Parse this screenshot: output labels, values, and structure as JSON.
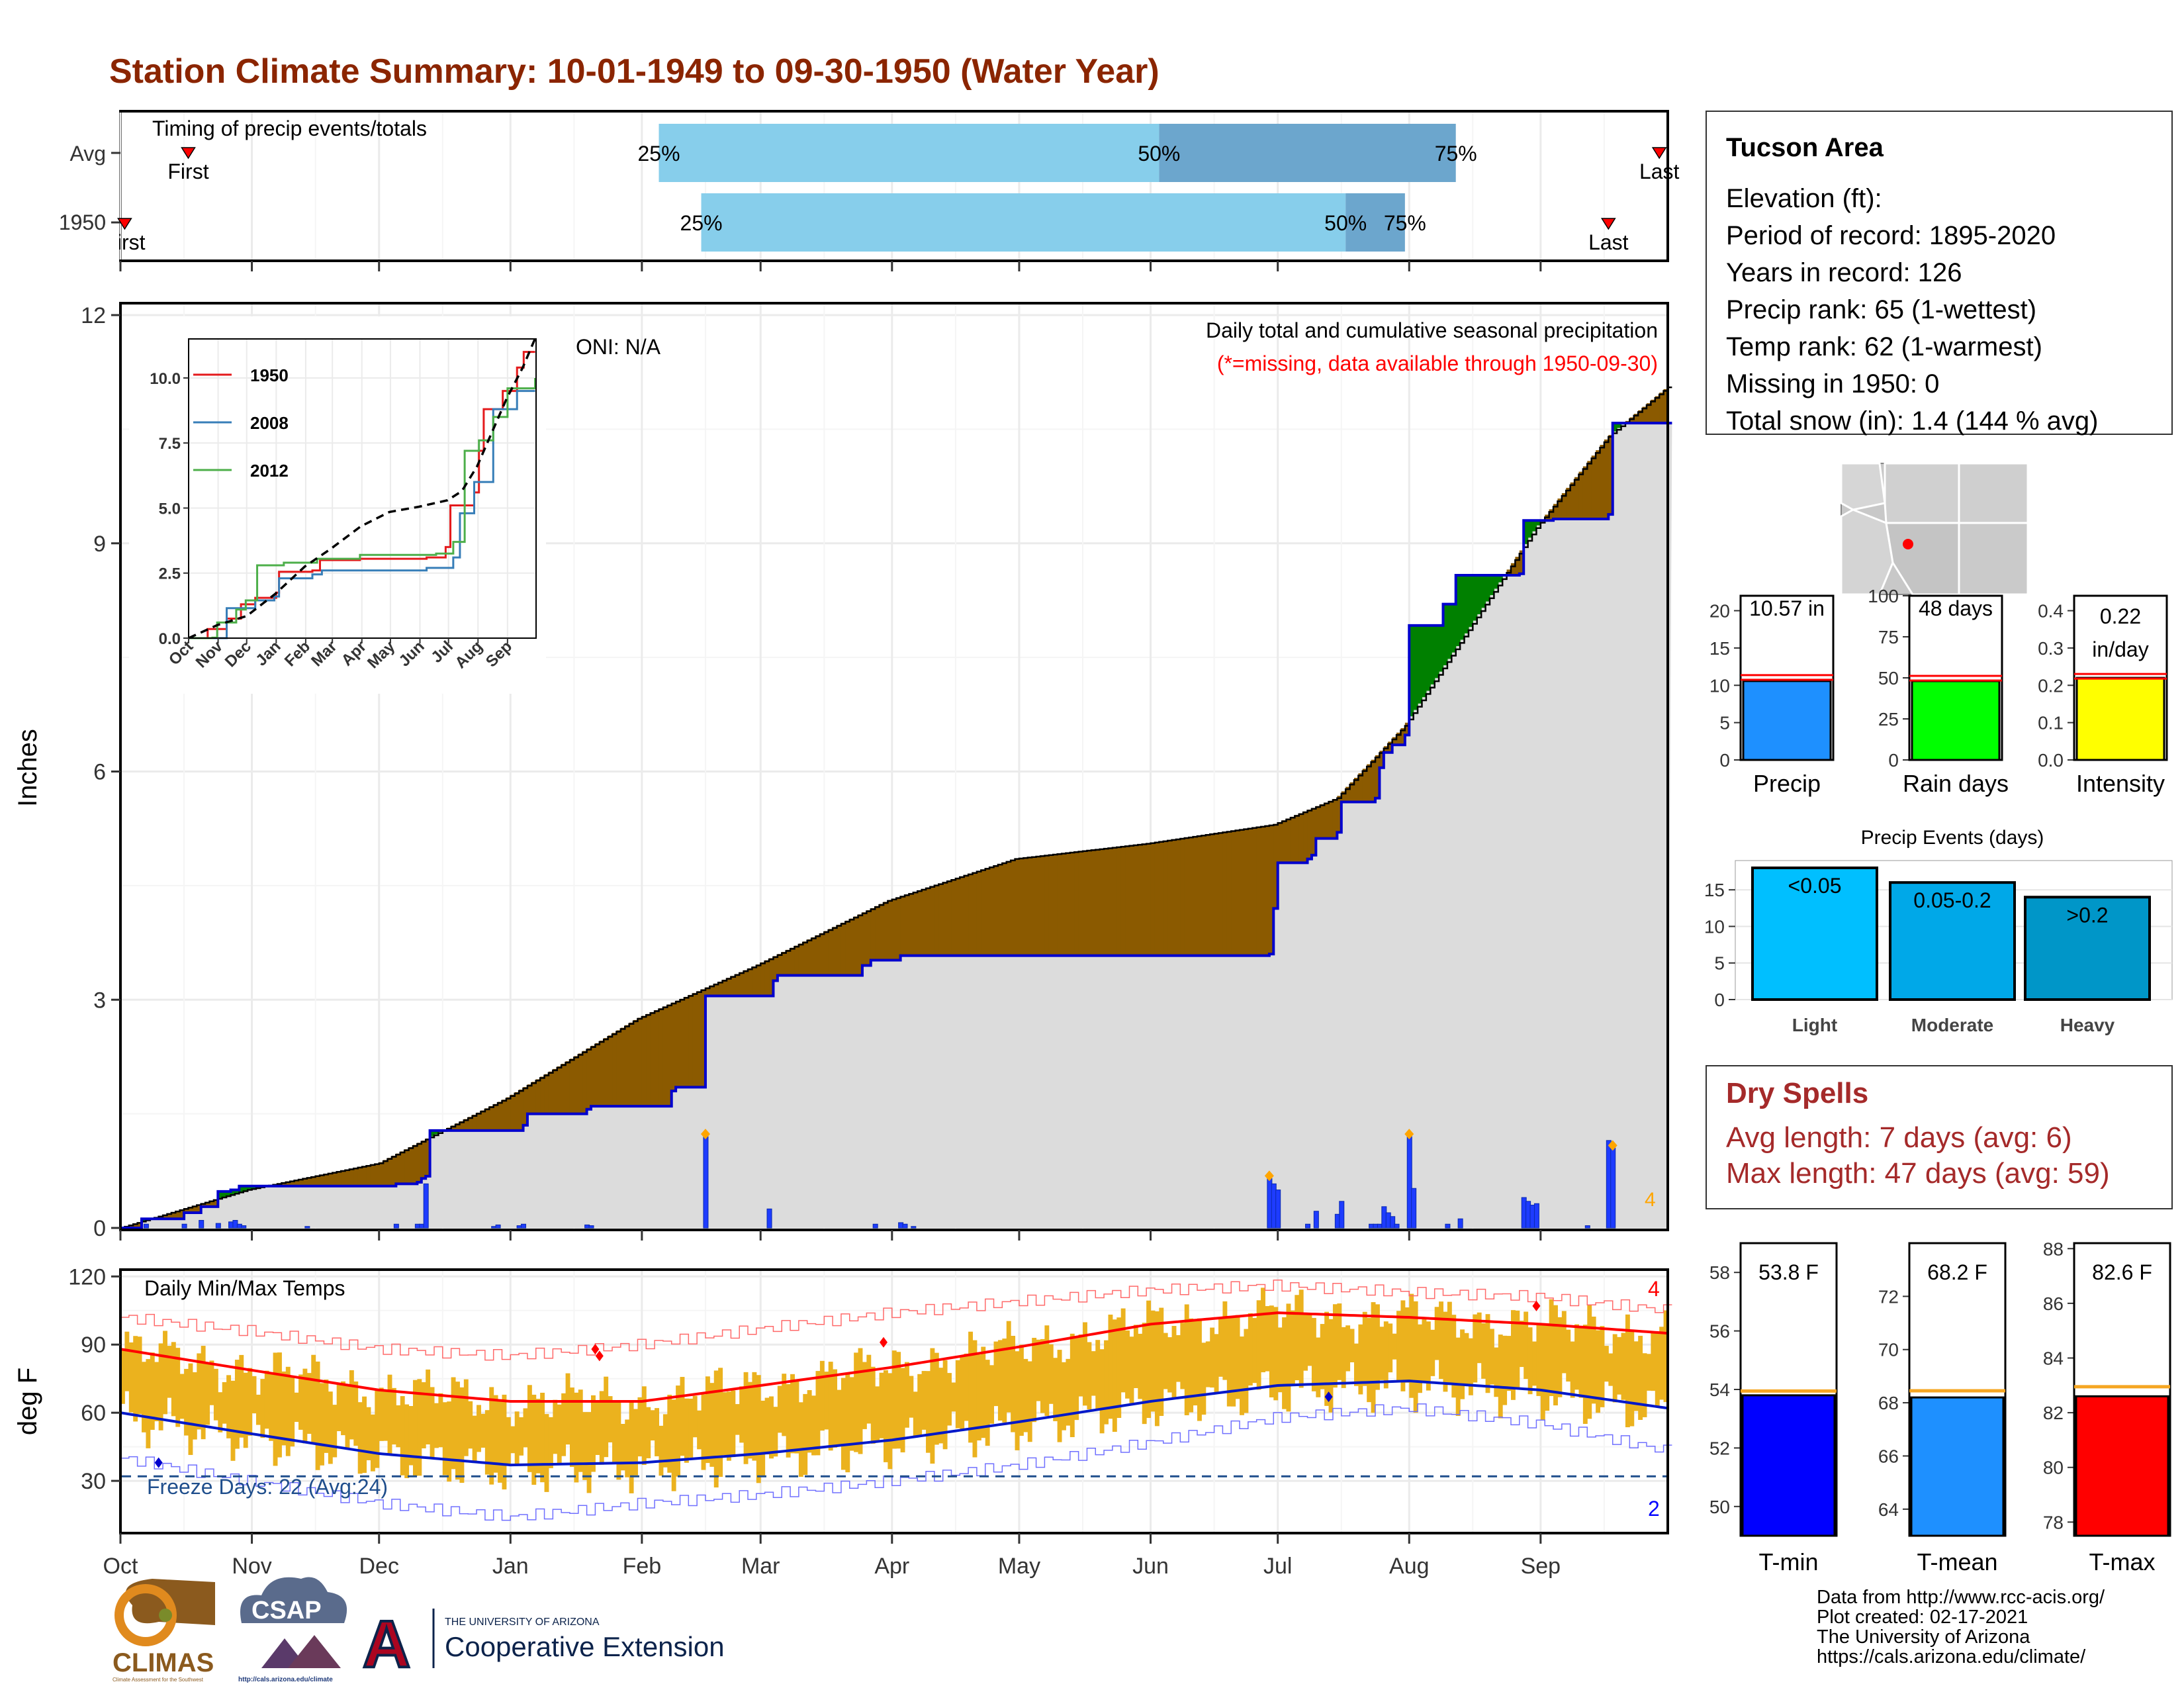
{
  "title": "Station Climate Summary: 10-01-1949 to 09-30-1950 (Water Year)",
  "colors": {
    "title": "#8B2500",
    "brown": "#8B5A00",
    "green": "#008000",
    "blue_line": "#0000CD",
    "bars": "#1E3CFF",
    "orange_marker": "#FFA500",
    "temp_band": "#EBB21E",
    "tmax_line": "#FF0000",
    "tmin_line": "#0018C8",
    "grey_fill": "#DCDCDC",
    "light_blue": "#87CEEB",
    "mid_blue": "#6CA6CD",
    "dry_red": "#A52A2A"
  },
  "timing": {
    "label": "Timing of precip events/totals",
    "rows": [
      {
        "name": "Avg",
        "first_label": "First",
        "last_label": "Last",
        "first_day": 16,
        "last_day": 363,
        "p25": 127,
        "p50": 245,
        "p75": 315,
        "p25_label": "25%",
        "p50_label": "50%",
        "p75_label": "75%"
      },
      {
        "name": "1950",
        "first_label": "First",
        "last_label": "Last",
        "first_day": 1,
        "last_day": 351,
        "p25": 137,
        "p50": 289,
        "p75": 303,
        "p25_label": "25%",
        "p50_label": "50%",
        "p75_label": "75%"
      }
    ]
  },
  "precip": {
    "ylabel": "Inches",
    "yticks": [
      0,
      3,
      6,
      9,
      12
    ],
    "ylim": [
      0,
      12
    ],
    "header": "Daily total and cumulative seasonal precipitation",
    "missing_note": "(*=missing, data available through 1950-09-30)",
    "oni": "ONI: N/A",
    "corner_count": "4",
    "cumulative_1950": [
      [
        0,
        0
      ],
      [
        5,
        0.12
      ],
      [
        15,
        0.2
      ],
      [
        19,
        0.28
      ],
      [
        23,
        0.48
      ],
      [
        26,
        0.5
      ],
      [
        28,
        0.55
      ],
      [
        58,
        0.55
      ],
      [
        65,
        0.58
      ],
      [
        70,
        0.6
      ],
      [
        71,
        0.65
      ],
      [
        72,
        0.68
      ],
      [
        73,
        1.28
      ],
      [
        95,
        1.35
      ],
      [
        96,
        1.5
      ],
      [
        110,
        1.56
      ],
      [
        111,
        1.6
      ],
      [
        130,
        1.8
      ],
      [
        131,
        1.85
      ],
      [
        137,
        1.85
      ],
      [
        138,
        3.05
      ],
      [
        153,
        3.05
      ],
      [
        154,
        3.25
      ],
      [
        155,
        3.32
      ],
      [
        175,
        3.45
      ],
      [
        177,
        3.52
      ],
      [
        184,
        3.58
      ],
      [
        250,
        3.58
      ],
      [
        271,
        3.6
      ],
      [
        272,
        4.2
      ],
      [
        273,
        4.8
      ],
      [
        280,
        4.85
      ],
      [
        281,
        4.9
      ],
      [
        282,
        5.12
      ],
      [
        287,
        5.2
      ],
      [
        288,
        5.6
      ],
      [
        296,
        5.65
      ],
      [
        297,
        6.05
      ],
      [
        298,
        6.25
      ],
      [
        300,
        6.35
      ],
      [
        303,
        6.48
      ],
      [
        304,
        7.92
      ],
      [
        312,
        8.2
      ],
      [
        315,
        8.58
      ],
      [
        330,
        8.6
      ],
      [
        331,
        9.3
      ],
      [
        338,
        9.32
      ],
      [
        351,
        9.38
      ],
      [
        352,
        10.58
      ],
      [
        364,
        10.58
      ]
    ],
    "normal_cumulative": [
      [
        0,
        0
      ],
      [
        30,
        0.5
      ],
      [
        61,
        0.85
      ],
      [
        91,
        1.7
      ],
      [
        122,
        2.75
      ],
      [
        150,
        3.45
      ],
      [
        181,
        4.3
      ],
      [
        211,
        4.85
      ],
      [
        242,
        5.05
      ],
      [
        272,
        5.3
      ],
      [
        287,
        5.65
      ],
      [
        303,
        6.6
      ],
      [
        334,
        9.2
      ],
      [
        351,
        10.4
      ],
      [
        365,
        11.05
      ]
    ],
    "daily_bars": [
      [
        6,
        0.05
      ],
      [
        15,
        0.05
      ],
      [
        19,
        0.1
      ],
      [
        23,
        0.06
      ],
      [
        26,
        0.08
      ],
      [
        27,
        0.1
      ],
      [
        28,
        0.05
      ],
      [
        29,
        0.03
      ],
      [
        44,
        0.02
      ],
      [
        65,
        0.05
      ],
      [
        70,
        0.05
      ],
      [
        71,
        0.05
      ],
      [
        72,
        0.58
      ],
      [
        88,
        0.02
      ],
      [
        89,
        0.04
      ],
      [
        94,
        0.03
      ],
      [
        95,
        0.05
      ],
      [
        110,
        0.04
      ],
      [
        111,
        0.03
      ],
      [
        138,
        1.2
      ],
      [
        153,
        0.25
      ],
      [
        178,
        0.05
      ],
      [
        184,
        0.07
      ],
      [
        185,
        0.05
      ],
      [
        187,
        0.02
      ],
      [
        271,
        0.65
      ],
      [
        272,
        0.58
      ],
      [
        273,
        0.5
      ],
      [
        280,
        0.05
      ],
      [
        282,
        0.22
      ],
      [
        287,
        0.18
      ],
      [
        288,
        0.35
      ],
      [
        295,
        0.05
      ],
      [
        296,
        0.05
      ],
      [
        297,
        0.05
      ],
      [
        298,
        0.28
      ],
      [
        299,
        0.2
      ],
      [
        300,
        0.15
      ],
      [
        301,
        0.05
      ],
      [
        304,
        1.2
      ],
      [
        305,
        0.52
      ],
      [
        313,
        0.05
      ],
      [
        316,
        0.12
      ],
      [
        331,
        0.4
      ],
      [
        332,
        0.35
      ],
      [
        333,
        0.3
      ],
      [
        334,
        0.32
      ],
      [
        346,
        0.03
      ],
      [
        351,
        1.15
      ],
      [
        352,
        1.05
      ]
    ],
    "flag_days": [
      138,
      271,
      304,
      352
    ]
  },
  "inset": {
    "yticks": [
      "0.0",
      "2.5",
      "5.0",
      "7.5",
      "10.0"
    ],
    "ylim": [
      0,
      11.5
    ],
    "months": [
      "Oct",
      "Nov",
      "Dec",
      "Jan",
      "Feb",
      "Mar",
      "Apr",
      "May",
      "Jun",
      "Jul",
      "Aug",
      "Sep"
    ],
    "series": [
      {
        "name": "1950",
        "color": "#E41A1C",
        "points": [
          [
            0,
            0
          ],
          [
            20,
            0.35
          ],
          [
            40,
            0.75
          ],
          [
            55,
            1.3
          ],
          [
            70,
            1.55
          ],
          [
            92,
            1.75
          ],
          [
            95,
            2.55
          ],
          [
            130,
            2.6
          ],
          [
            138,
            3.0
          ],
          [
            180,
            3.05
          ],
          [
            250,
            3.1
          ],
          [
            270,
            3.5
          ],
          [
            275,
            5.1
          ],
          [
            300,
            5.6
          ],
          [
            305,
            7.2
          ],
          [
            310,
            8.8
          ],
          [
            330,
            9.5
          ],
          [
            345,
            10.4
          ],
          [
            352,
            11.0
          ],
          [
            364,
            11.0
          ]
        ]
      },
      {
        "name": "2008",
        "color": "#377EB8",
        "points": [
          [
            0,
            0
          ],
          [
            38,
            0
          ],
          [
            40,
            1.15
          ],
          [
            70,
            1.45
          ],
          [
            90,
            1.6
          ],
          [
            95,
            2.3
          ],
          [
            130,
            2.45
          ],
          [
            140,
            2.6
          ],
          [
            250,
            2.7
          ],
          [
            278,
            3.1
          ],
          [
            285,
            4.8
          ],
          [
            300,
            6.0
          ],
          [
            320,
            8.8
          ],
          [
            345,
            9.5
          ],
          [
            364,
            9.5
          ]
        ]
      },
      {
        "name": "2012",
        "color": "#4DAF4A",
        "points": [
          [
            0,
            0
          ],
          [
            25,
            0.02
          ],
          [
            30,
            0.6
          ],
          [
            50,
            1.1
          ],
          [
            60,
            1.45
          ],
          [
            72,
            2.8
          ],
          [
            100,
            2.9
          ],
          [
            135,
            3.05
          ],
          [
            180,
            3.2
          ],
          [
            260,
            3.25
          ],
          [
            278,
            3.7
          ],
          [
            290,
            7.2
          ],
          [
            305,
            7.6
          ],
          [
            320,
            8.5
          ],
          [
            335,
            9.6
          ],
          [
            364,
            10.0
          ]
        ]
      }
    ],
    "normal": [
      [
        0,
        0
      ],
      [
        30,
        0.5
      ],
      [
        61,
        0.85
      ],
      [
        91,
        1.7
      ],
      [
        122,
        2.75
      ],
      [
        150,
        3.45
      ],
      [
        181,
        4.3
      ],
      [
        211,
        4.85
      ],
      [
        242,
        5.05
      ],
      [
        272,
        5.3
      ],
      [
        287,
        5.65
      ],
      [
        303,
        6.6
      ],
      [
        334,
        9.2
      ],
      [
        351,
        10.4
      ],
      [
        365,
        11.6
      ]
    ]
  },
  "temps": {
    "title": "Daily Min/Max Temps",
    "ylabel": "deg F",
    "yticks": [
      30,
      60,
      90,
      120
    ],
    "ylim": [
      7,
      123
    ],
    "freeze_label": "Freeze Days: 22 (Avg:24)",
    "freeze_line": 32,
    "max_count": "4",
    "min_count": "2",
    "tmax_normal": [
      [
        0,
        88
      ],
      [
        30,
        79
      ],
      [
        61,
        70
      ],
      [
        92,
        65
      ],
      [
        123,
        65
      ],
      [
        151,
        72
      ],
      [
        182,
        80
      ],
      [
        212,
        89
      ],
      [
        243,
        99
      ],
      [
        273,
        104
      ],
      [
        304,
        102
      ],
      [
        335,
        99
      ],
      [
        365,
        95
      ]
    ],
    "tmin_normal": [
      [
        0,
        60
      ],
      [
        30,
        51
      ],
      [
        61,
        42
      ],
      [
        92,
        37
      ],
      [
        123,
        38
      ],
      [
        151,
        42
      ],
      [
        182,
        48
      ],
      [
        212,
        56
      ],
      [
        243,
        65
      ],
      [
        273,
        72
      ],
      [
        304,
        74
      ],
      [
        335,
        70
      ],
      [
        365,
        62
      ]
    ],
    "record_max": [
      [
        0,
        102
      ],
      [
        30,
        96
      ],
      [
        61,
        88
      ],
      [
        92,
        85
      ],
      [
        123,
        90
      ],
      [
        151,
        97
      ],
      [
        182,
        104
      ],
      [
        212,
        109
      ],
      [
        243,
        114
      ],
      [
        273,
        116
      ],
      [
        304,
        113
      ],
      [
        335,
        111
      ],
      [
        365,
        105
      ]
    ],
    "record_min": [
      [
        0,
        40
      ],
      [
        30,
        30
      ],
      [
        61,
        20
      ],
      [
        92,
        14
      ],
      [
        123,
        20
      ],
      [
        151,
        24
      ],
      [
        182,
        30
      ],
      [
        212,
        37
      ],
      [
        243,
        47
      ],
      [
        273,
        58
      ],
      [
        304,
        62
      ],
      [
        335,
        55
      ],
      [
        365,
        43
      ]
    ],
    "max_markers": [
      [
        112,
        88
      ],
      [
        113,
        85
      ],
      [
        180,
        91
      ],
      [
        334,
        107
      ]
    ],
    "min_markers": [
      [
        9,
        38
      ],
      [
        285,
        67
      ]
    ]
  },
  "xaxis": {
    "months": [
      "Oct",
      "Nov",
      "Dec",
      "Jan",
      "Feb",
      "Mar",
      "Apr",
      "May",
      "Jun",
      "Jul",
      "Aug",
      "Sep"
    ],
    "month_starts": [
      0,
      31,
      61,
      92,
      123,
      151,
      182,
      212,
      243,
      273,
      304,
      335
    ]
  },
  "station": {
    "name": "Tucson Area",
    "lines": [
      "Elevation (ft):",
      "Period of record: 1895-2020",
      "Years in record: 126",
      "Precip rank: 65 (1-wettest)",
      "Temp rank: 62 (1-warmest)",
      "Missing in 1950: 0",
      "Total snow (in): 1.4 (144 % avg)"
    ]
  },
  "summary_bars": [
    {
      "label": "Precip",
      "value": 10.57,
      "avg": 11.1,
      "value_label": "10.57 in",
      "yticks": [
        "0",
        "5",
        "10",
        "15",
        "20"
      ],
      "ymax": 22,
      "tick_values": [
        0,
        5,
        10,
        15,
        20
      ],
      "color": "#1E90FF"
    },
    {
      "label": "Rain days",
      "value": 48,
      "avg": 50,
      "value_label": "48 days",
      "yticks": [
        "0",
        "25",
        "50",
        "75",
        "100"
      ],
      "ymax": 100,
      "tick_values": [
        0,
        25,
        50,
        75,
        100
      ],
      "color": "#00FF00"
    },
    {
      "label": "Intensity",
      "value": 0.22,
      "avg": 0.225,
      "value_label": "0.22 in/day",
      "value_label_1": "0.22",
      "value_label_2": "in/day",
      "yticks": [
        "0.0",
        "0.1",
        "0.2",
        "0.3",
        "0.4"
      ],
      "ymax": 0.44,
      "tick_values": [
        0,
        0.1,
        0.2,
        0.3,
        0.4
      ],
      "color": "#FFFF00"
    }
  ],
  "events": {
    "title": "Precip Events (days)",
    "yticks": [
      "0",
      "5",
      "10",
      "15"
    ],
    "tick_values": [
      0,
      5,
      10,
      15
    ],
    "ymax": 19,
    "bars": [
      {
        "category": "Light",
        "value": 18,
        "label": "<0.05",
        "color": "#00BFFF"
      },
      {
        "category": "Moderate",
        "value": 16,
        "label": "0.05-0.2",
        "color": "#00A8E8"
      },
      {
        "category": "Heavy",
        "value": 14,
        "label": ">0.2",
        "color": "#0096C8"
      }
    ]
  },
  "dry_spells": {
    "title": "Dry Spells",
    "avg_length": "Avg length: 7 days (avg: 6)",
    "max_length": "Max length: 47 days (avg: 59)"
  },
  "temp_bars": [
    {
      "label": "T-min",
      "value": 53.8,
      "avg": 53.9,
      "value_label": "53.8 F",
      "ymin": 49,
      "ymax": 59,
      "ticks": [
        50,
        52,
        54,
        56,
        58
      ],
      "color": "#0000FF"
    },
    {
      "label": "T-mean",
      "value": 68.2,
      "avg": 68.4,
      "value_label": "68.2 F",
      "ymin": 63,
      "ymax": 74,
      "ticks": [
        64,
        66,
        68,
        70,
        72
      ],
      "color": "#1E90FF"
    },
    {
      "label": "T-max",
      "value": 82.6,
      "avg": 82.9,
      "value_label": "82.6 F",
      "ymin": 77.5,
      "ymax": 88.2,
      "ticks": [
        78,
        80,
        82,
        84,
        86,
        88
      ],
      "color": "#FF0000"
    }
  ],
  "credits": [
    "Data from http://www.rcc-acis.org/",
    "Plot created: 02-17-2021",
    "The University of Arizona",
    "https://cals.arizona.edu/climate/"
  ],
  "logos": {
    "climas": "CLIMAS",
    "climas_sub": "Climate Assessment for the Southwest",
    "csap": "CSAP",
    "csap_url": "http://cals.arizona.edu/climate",
    "ua_letter": "A",
    "ua_small": "THE UNIVERSITY OF ARIZONA",
    "ua_big": "Cooperative Extension"
  },
  "chart_data": [
    {
      "type": "bar",
      "title": "Timing of precip events/totals",
      "categories": [
        "Avg",
        "1950"
      ],
      "series": [
        {
          "name": "25%",
          "values": [
            127,
            137
          ]
        },
        {
          "name": "50%",
          "values": [
            245,
            289
          ]
        },
        {
          "name": "75%",
          "values": [
            315,
            303
          ]
        }
      ]
    },
    {
      "type": "area",
      "title": "Daily total and cumulative seasonal precipitation",
      "ylabel": "Inches",
      "ylim": [
        0,
        12
      ]
    },
    {
      "type": "line",
      "title": "Daily Min/Max Temps",
      "ylabel": "deg F",
      "ylim": [
        7,
        123
      ]
    },
    {
      "type": "bar",
      "categories": [
        "Precip",
        "Rain days",
        "Intensity"
      ],
      "values": [
        10.57,
        48,
        0.22
      ]
    },
    {
      "type": "bar",
      "title": "Precip Events (days)",
      "categories": [
        "Light",
        "Moderate",
        "Heavy"
      ],
      "values": [
        18,
        16,
        14
      ]
    },
    {
      "type": "bar",
      "categories": [
        "T-min",
        "T-mean",
        "T-max"
      ],
      "values": [
        53.8,
        68.2,
        82.6
      ]
    }
  ]
}
